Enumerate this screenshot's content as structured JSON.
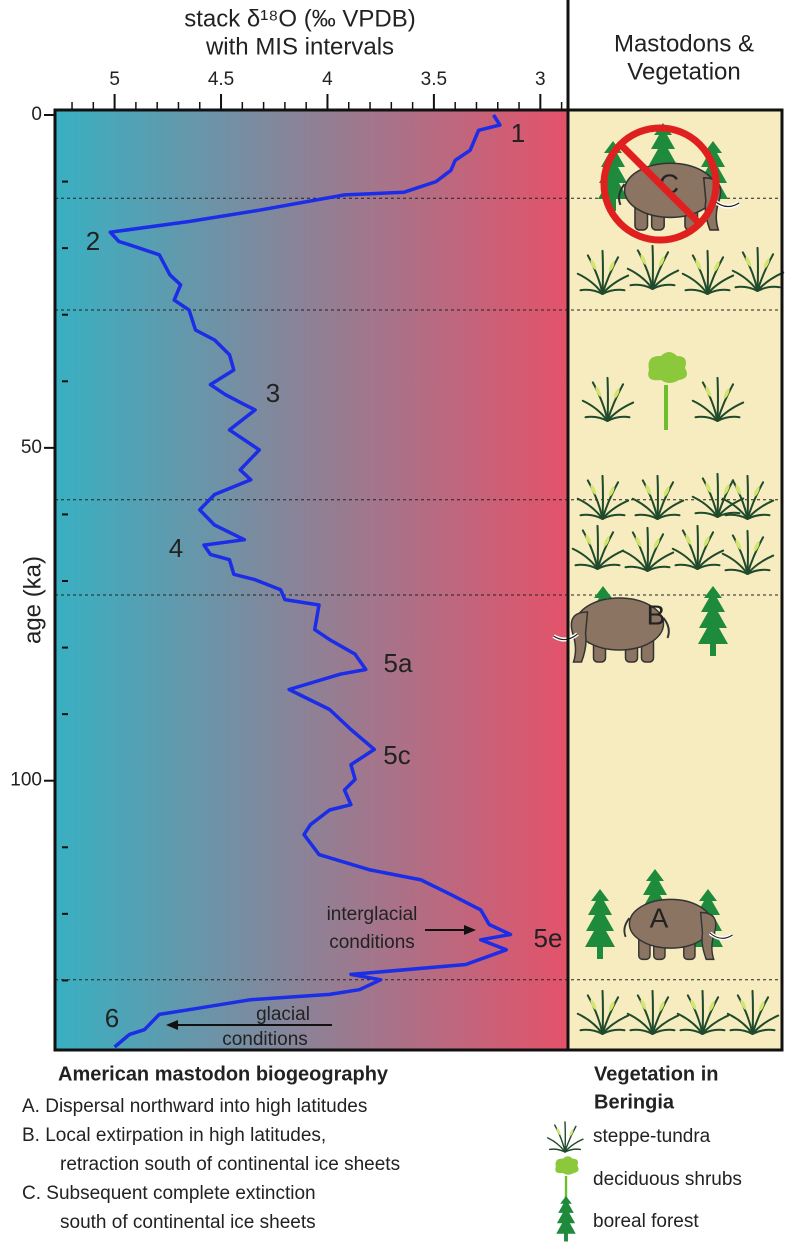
{
  "chart_data": {
    "type": "line",
    "title": [
      "stack δ¹⁸O (‰ VPDB)",
      "with MIS intervals"
    ],
    "ylabel": "age (ka)",
    "xlim": [
      5.28,
      2.87
    ],
    "xticks": [
      5,
      4.5,
      4,
      3.5,
      3
    ],
    "xminor": [
      5.2,
      5.1,
      4.9,
      4.8,
      4.7,
      4.6,
      4.4,
      4.3,
      4.2,
      4.1,
      3.9,
      3.8,
      3.7,
      3.6,
      3.4,
      3.3,
      3.2,
      3.1,
      2.9
    ],
    "ylim": [
      0,
      140
    ],
    "yticks": [
      0,
      {
        "value": 10,
        "label": null
      },
      {
        "value": 20,
        "label": null
      },
      {
        "value": 30,
        "label": null
      },
      {
        "value": 40,
        "label": null
      },
      50,
      {
        "value": 60,
        "label": null
      },
      {
        "value": 70,
        "label": null
      },
      {
        "value": 80,
        "label": null
      },
      {
        "value": 90,
        "label": null
      },
      100,
      {
        "value": 110,
        "label": null
      },
      {
        "value": 120,
        "label": null
      },
      {
        "value": 130,
        "label": null
      }
    ],
    "gradient": [
      "#38b0c2",
      "#e4526a"
    ],
    "age": [
      0,
      1.5,
      2.3,
      5.3,
      6.8,
      8.3,
      10,
      11.6,
      12,
      14.3,
      16,
      17.6,
      19,
      19.5,
      21,
      24,
      25.5,
      27.8,
      29.3,
      32.3,
      33.8,
      36,
      38.3,
      40.5,
      42,
      43.5,
      44.3,
      47.3,
      50.3,
      53.3,
      54.8,
      57,
      59.3,
      61.6,
      63.8,
      64.6,
      66,
      66.8,
      69,
      69.8,
      71.3,
      72.8,
      73.6,
      77.3,
      78.8,
      81,
      83.3,
      84,
      86.3,
      89.3,
      92.3,
      95.3,
      97.6,
      99.8,
      101.4,
      103.6,
      104.4,
      106.6,
      108.1,
      111.1,
      113.4,
      114.9,
      117.1,
      119.4,
      121.6,
      123.1,
      123.9,
      125.4,
      127.6,
      129.1,
      129.9,
      131.4,
      132.1,
      132.9,
      134.4,
      135.1,
      137.4,
      138.1,
      140
    ],
    "series": [
      {
        "color": "#1b2de6",
        "values": [
          3.22,
          3.19,
          3.29,
          3.33,
          3.4,
          3.42,
          3.49,
          3.64,
          3.92,
          4.32,
          4.65,
          5.02,
          4.98,
          4.93,
          4.79,
          4.74,
          4.69,
          4.72,
          4.65,
          4.62,
          4.53,
          4.46,
          4.44,
          4.55,
          4.48,
          4.39,
          4.34,
          4.46,
          4.32,
          4.41,
          4.36,
          4.53,
          4.6,
          4.53,
          4.39,
          4.58,
          4.55,
          4.46,
          4.44,
          4.34,
          4.22,
          4.2,
          4.04,
          4.06,
          3.99,
          3.87,
          3.82,
          3.94,
          4.18,
          3.99,
          3.89,
          3.78,
          3.89,
          3.87,
          3.92,
          3.89,
          3.99,
          4.08,
          4.11,
          4.04,
          3.8,
          3.56,
          3.42,
          3.28,
          3.24,
          3.14,
          3.28,
          3.16,
          3.35,
          3.89,
          3.75,
          3.85,
          3.99,
          4.36,
          4.65,
          4.79,
          4.86,
          4.93,
          5.0
        ]
      }
    ],
    "mis_boundaries": [
      12.5,
      29.3,
      57.8,
      72.1,
      129.9
    ],
    "mis_labels": [
      "1",
      "2",
      "3",
      "4",
      "5a",
      "5c",
      "5e",
      "6"
    ],
    "notes": [
      [
        "interglacial",
        "conditions"
      ],
      [
        "glacial",
        "conditions"
      ]
    ],
    "panel_title": [
      "Mastodons &",
      "Vegetation"
    ],
    "panel_letters": [
      "C",
      "B",
      "A"
    ],
    "biogeography": {
      "title": "American mastodon biogeography",
      "items": [
        [
          "A. Dispersal northward into high latitudes"
        ],
        [
          "B. Local extirpation in high latitudes,",
          "retraction south of continental ice sheets"
        ],
        [
          "C. Subsequent complete extinction",
          "south of continental ice sheets"
        ]
      ]
    },
    "vegetation": {
      "title": [
        "Vegetation in",
        "Beringia"
      ],
      "items": [
        "steppe-tundra",
        "deciduous shrubs",
        "boreal forest"
      ]
    }
  }
}
